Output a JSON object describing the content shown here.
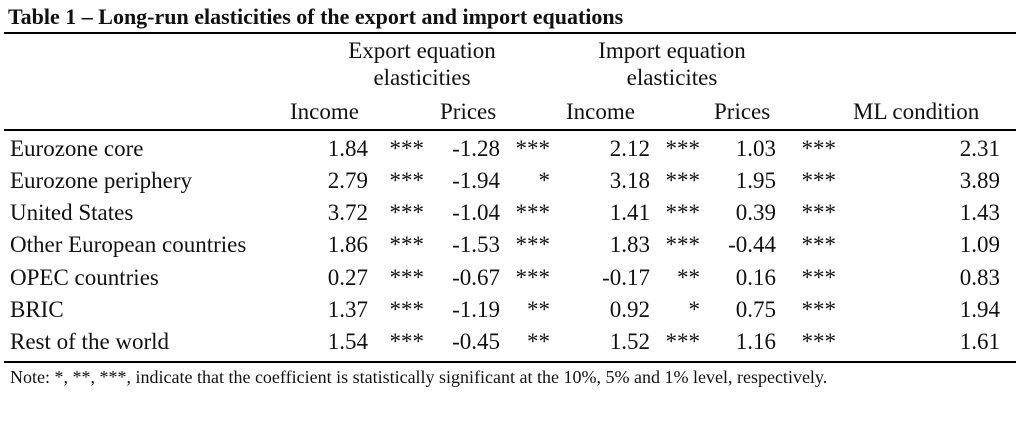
{
  "table": {
    "title": "Table 1 – Long-run elasticities of the export and import equations",
    "groups": {
      "export": "Export equation elasticities",
      "import": "Import equation elasticites"
    },
    "headers": {
      "exp_income": "Income",
      "exp_prices": "Prices",
      "imp_income": "Income",
      "imp_prices": "Prices",
      "ml": "ML condition"
    },
    "rows": [
      {
        "name": "Eurozone core",
        "exp_income": "1.84",
        "exp_income_sig": "***",
        "exp_prices": "-1.28",
        "exp_prices_sig": "***",
        "imp_income": "2.12",
        "imp_income_sig": "***",
        "imp_prices": "1.03",
        "imp_prices_sig": "***",
        "ml": "2.31"
      },
      {
        "name": "Eurozone periphery",
        "exp_income": "2.79",
        "exp_income_sig": "***",
        "exp_prices": "-1.94",
        "exp_prices_sig": "*",
        "imp_income": "3.18",
        "imp_income_sig": "***",
        "imp_prices": "1.95",
        "imp_prices_sig": "***",
        "ml": "3.89"
      },
      {
        "name": "United States",
        "exp_income": "3.72",
        "exp_income_sig": "***",
        "exp_prices": "-1.04",
        "exp_prices_sig": "***",
        "imp_income": "1.41",
        "imp_income_sig": "***",
        "imp_prices": "0.39",
        "imp_prices_sig": "***",
        "ml": "1.43"
      },
      {
        "name": "Other European countries",
        "exp_income": "1.86",
        "exp_income_sig": "***",
        "exp_prices": "-1.53",
        "exp_prices_sig": "***",
        "imp_income": "1.83",
        "imp_income_sig": "***",
        "imp_prices": "-0.44",
        "imp_prices_sig": "***",
        "ml": "1.09"
      },
      {
        "name": "OPEC countries",
        "exp_income": "0.27",
        "exp_income_sig": "***",
        "exp_prices": "-0.67",
        "exp_prices_sig": "***",
        "imp_income": "-0.17",
        "imp_income_sig": "**",
        "imp_prices": "0.16",
        "imp_prices_sig": "***",
        "ml": "0.83"
      },
      {
        "name": "BRIC",
        "exp_income": "1.37",
        "exp_income_sig": "***",
        "exp_prices": "-1.19",
        "exp_prices_sig": "**",
        "imp_income": "0.92",
        "imp_income_sig": "*",
        "imp_prices": "0.75",
        "imp_prices_sig": "***",
        "ml": "1.94"
      },
      {
        "name": "Rest of the world",
        "exp_income": "1.54",
        "exp_income_sig": "***",
        "exp_prices": "-0.45",
        "exp_prices_sig": "**",
        "imp_income": "1.52",
        "imp_income_sig": "***",
        "imp_prices": "1.16",
        "imp_prices_sig": "***",
        "ml": "1.61"
      }
    ],
    "note": "Note: *, **, ***, indicate that the coefficient is statistically significant at the 10%, 5% and 1% level, respectively."
  }
}
